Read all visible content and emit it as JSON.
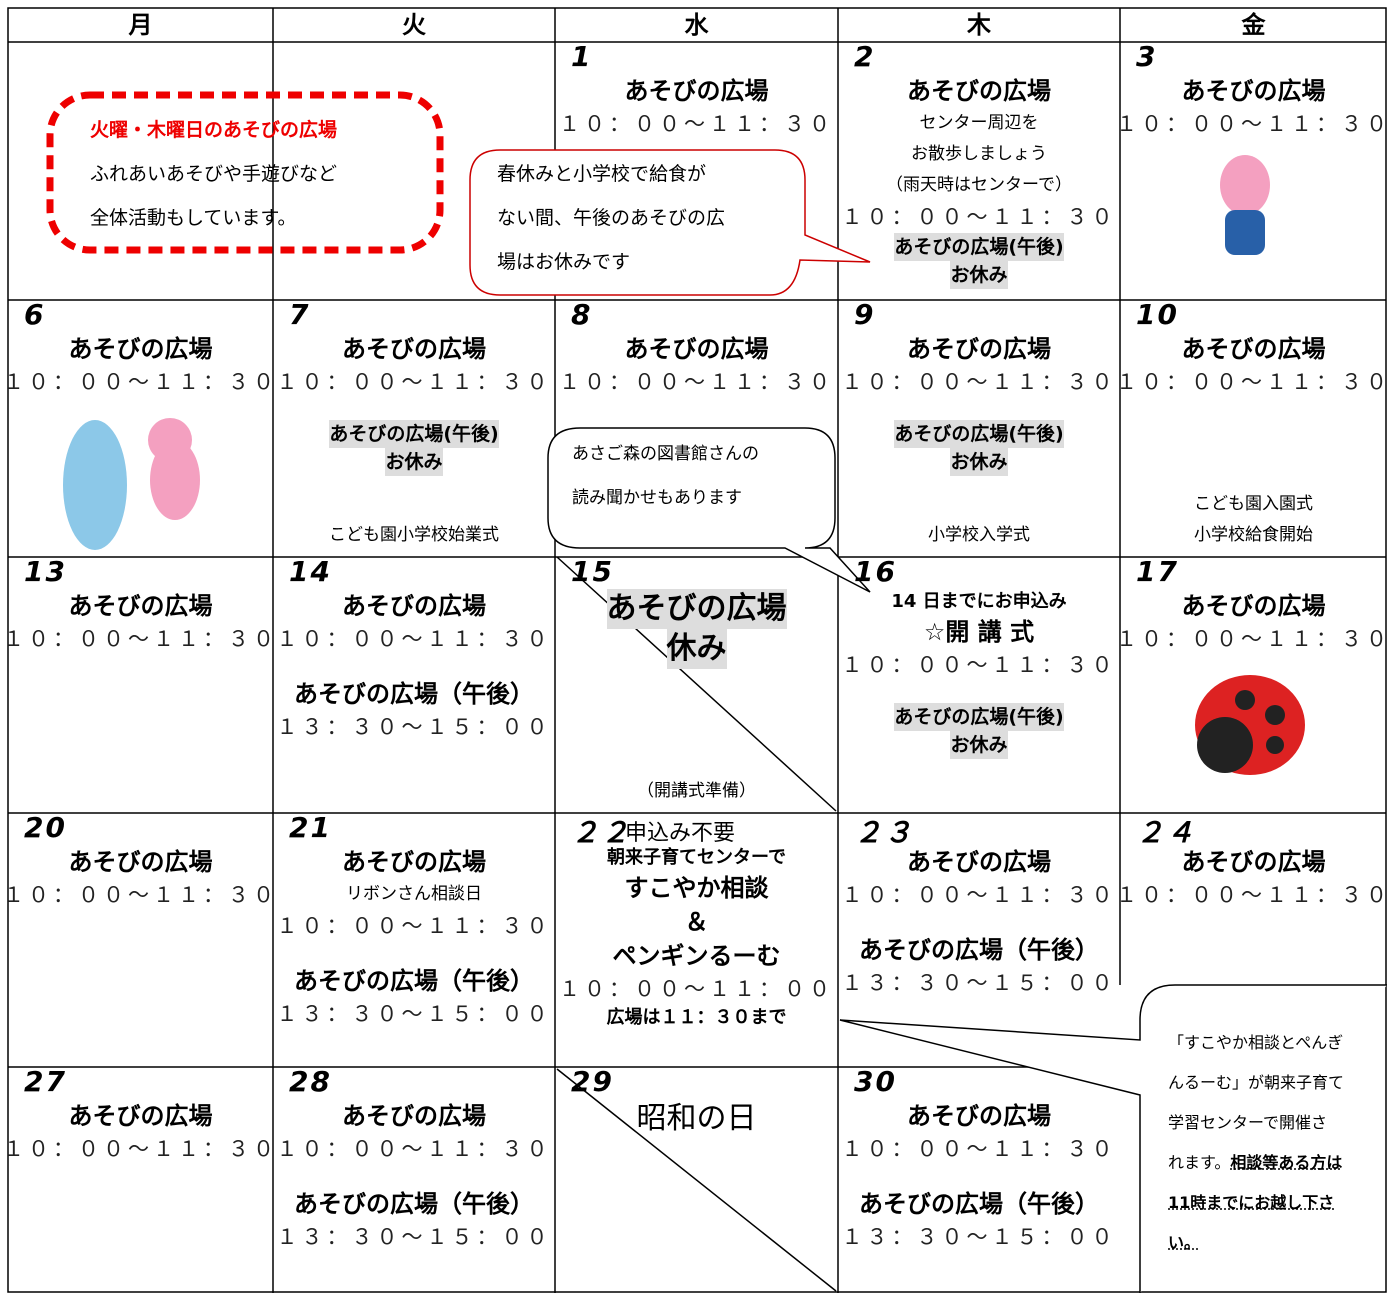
{
  "header": {
    "days": [
      "月",
      "火",
      "水",
      "木",
      "金"
    ]
  },
  "weeks": [
    [
      {
        "date": "1",
        "lines": [
          "あそびの広場",
          "１０：００～１１：３０"
        ]
      },
      {
        "date": "2",
        "lines": [
          "あそびの広場",
          "センター周辺を",
          "お散歩しましょう",
          "（雨天時はセンターで）",
          "１０：００～１１：３０",
          "あそびの広場(午後)",
          "お休み"
        ]
      },
      {
        "date": "3",
        "lines": [
          "あそびの広場",
          "１０：００～１１：３０"
        ]
      }
    ],
    [
      {
        "date": "6",
        "lines": [
          "あそびの広場",
          "１０：００～１１：３０"
        ]
      },
      {
        "date": "7",
        "lines": [
          "あそびの広場",
          "１０：００～１１：３０",
          "あそびの広場(午後)",
          "お休み",
          "こども園小学校始業式"
        ]
      },
      {
        "date": "8",
        "lines": [
          "あそびの広場",
          "１０：００～１１：３０"
        ]
      },
      {
        "date": "9",
        "lines": [
          "あそびの広場",
          "１０：００～１１：３０",
          "あそびの広場(午後)",
          "お休み",
          "小学校入学式"
        ]
      },
      {
        "date": "10",
        "lines": [
          "あそびの広場",
          "１０：００～１１：３０",
          "こども園入園式",
          "小学校給食開始"
        ]
      }
    ],
    [
      {
        "date": "13",
        "lines": [
          "あそびの広場",
          "１０：００～１１：３０"
        ]
      },
      {
        "date": "14",
        "lines": [
          "あそびの広場",
          "１０：００～１１：３０",
          "あそびの広場（午後）",
          "１３：３０～１５：００"
        ]
      },
      {
        "date": "15",
        "lines": [
          "あそびの広場",
          "休み",
          "（開講式準備）"
        ]
      },
      {
        "date": "16",
        "lines": [
          "14 日までにお申込み",
          "☆開 講 式",
          "１０：００～１１：３０",
          "あそびの広場(午後)",
          "お休み"
        ]
      },
      {
        "date": "17",
        "lines": [
          "あそびの広場",
          "１０：００～１１：３０"
        ]
      }
    ],
    [
      {
        "date": "20",
        "lines": [
          "あそびの広場",
          "１０：００～１１：３０"
        ]
      },
      {
        "date": "21",
        "lines": [
          "あそびの広場",
          "リボンさん相談日",
          "１０：００～１１：３０",
          "あそびの広場（午後）",
          "１３：３０～１５：００"
        ]
      },
      {
        "date": "２２",
        "lines": [
          "申込み不要",
          "朝来子育てセンターで",
          "すこやか相談",
          "＆",
          "ペンギンるーむ",
          "１０：００～１１：００",
          "広場は１１：３０まで"
        ]
      },
      {
        "date": "２３",
        "lines": [
          "あそびの広場",
          "１０：００～１１：３０",
          "あそびの広場（午後）",
          "１３：３０～１５：００"
        ]
      },
      {
        "date": "２４",
        "lines": [
          "あそびの広場",
          "１０：００～１１：３０"
        ]
      }
    ],
    [
      {
        "date": "27",
        "lines": [
          "あそびの広場",
          "１０：００～１１：３０"
        ]
      },
      {
        "date": "28",
        "lines": [
          "あそびの広場",
          "１０：００～１１：３０",
          "あそびの広場（午後）",
          "１３：３０～１５：００"
        ]
      },
      {
        "date": "29",
        "lines": [
          "昭和の日"
        ]
      },
      {
        "date": "30",
        "lines": [
          "あそびの広場",
          "１０：００～１１：３０",
          "あそびの広場（午後）",
          "１３：３０～１５：００"
        ]
      }
    ]
  ],
  "callouts": [
    {
      "lines": [
        "火曜・木曜日のあそびの広場",
        "ふれあいあそびや手遊びなど",
        "全体活動もしています。"
      ]
    },
    {
      "lines": [
        "春休みと小学校で給食が",
        "ない間、午後のあそびの広",
        "場はお休みです"
      ]
    },
    {
      "lines": [
        "あさご森の図書館さんの",
        "読み聞かせもあります"
      ]
    },
    {
      "lines": [
        "「すこやか相談とぺんぎ",
        "んるーむ」が朝来子育て",
        "学習センターで開催さ",
        "れます。",
        "相談等ある方は",
        "11時までにお越し下さ",
        "い。"
      ]
    }
  ]
}
